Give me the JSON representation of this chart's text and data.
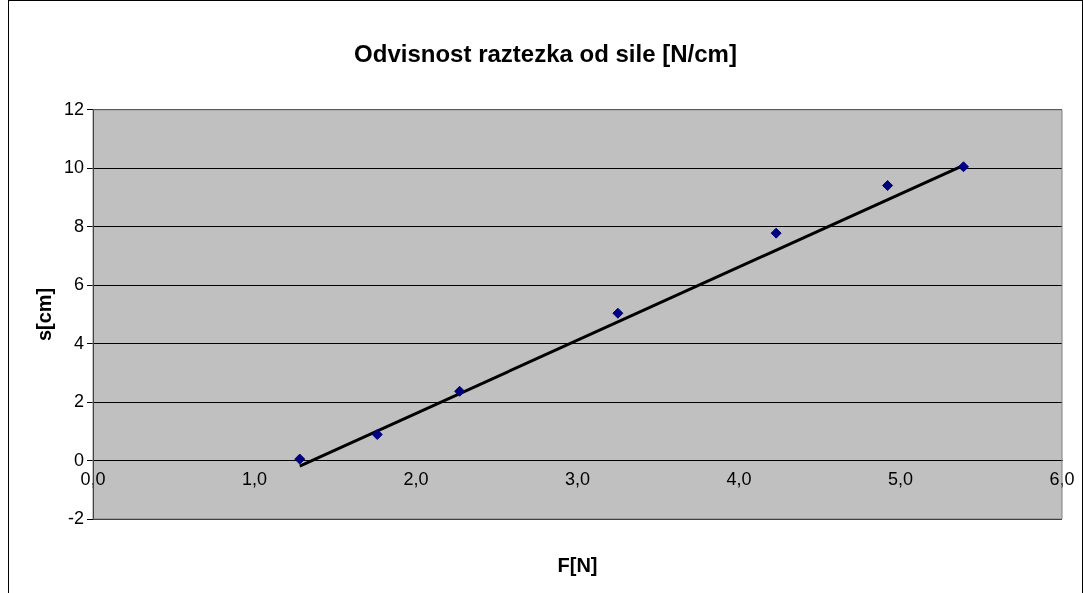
{
  "chart_data": {
    "type": "scatter",
    "title": "Odvisnost raztezka od sile [N/cm]",
    "xlabel": "F[N]",
    "ylabel": "s[cm]",
    "x": [
      1.28,
      1.76,
      2.27,
      3.25,
      4.23,
      4.92,
      5.39
    ],
    "series": [
      {
        "color": "#000080",
        "values": [
          0.05,
          0.89,
          2.37,
          5.04,
          7.78,
          9.41,
          10.05
        ]
      },
      {
        "type": "line",
        "marker": "none",
        "color": "#000000",
        "x": [
          1.28,
          5.39
        ],
        "values": [
          -0.19,
          10.1
        ]
      }
    ],
    "xlim": [
      0,
      6
    ],
    "xticks": [
      {
        "value": 0,
        "label": "0,0"
      },
      {
        "value": 1,
        "label": "1,0"
      },
      {
        "value": 2,
        "label": "2,0"
      },
      {
        "value": 3,
        "label": "3,0"
      },
      {
        "value": 4,
        "label": "4,0"
      },
      {
        "value": 5,
        "label": "5,0"
      },
      {
        "value": 6,
        "label": "6,0"
      }
    ],
    "ylim": [
      -2,
      12
    ],
    "yticks": [
      -2,
      0,
      2,
      4,
      6,
      8,
      10,
      12
    ],
    "grid": "y",
    "legend": false,
    "marker": "diamond",
    "line_style": "solid"
  }
}
